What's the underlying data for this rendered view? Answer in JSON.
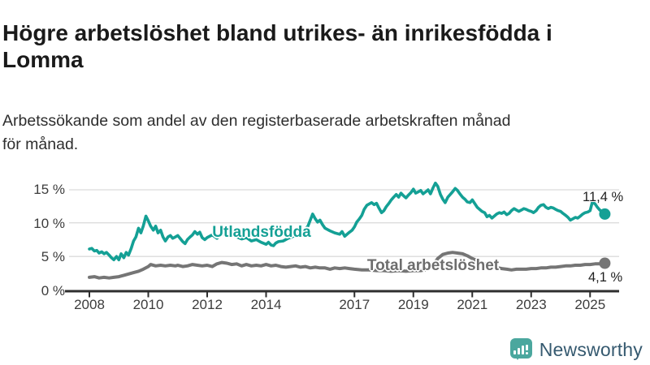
{
  "header": {
    "title_lines": [
      "Högre arbetslöshet bland utrikes- än inrikesfödda i",
      "Lomma"
    ],
    "subtitle_lines": [
      "Arbetssökande som andel av den registerbaserade arbetskraften månad",
      "för månad."
    ]
  },
  "annotations": {
    "utlandsfodda_end_value": "11,4 %",
    "total_end_value": "4,1 %"
  },
  "logo": {
    "text": "Newsworthy",
    "icon": "bar-chart-speech-bubble-icon",
    "icon_color": "#4ba79e",
    "text_color": "#35596f"
  },
  "colors": {
    "teal_series": "#14a095",
    "gray_series": "#757575",
    "gridline": "#dcdcdc",
    "axis": "#2e2e2e",
    "title_text": "#1a1a1a"
  },
  "chart_data": {
    "type": "line",
    "title": "Högre arbetslöshet bland utrikes- än inrikesfödda i Lomma",
    "subtitle": "Arbetssökande som andel av den registerbaserade arbetskraften månad för månad.",
    "xlabel": "",
    "ylabel": "",
    "ylim": [
      0,
      17
    ],
    "grid": true,
    "legend_position": "inline-labels",
    "y_ticks": [
      0,
      5,
      10,
      15
    ],
    "y_tick_labels": [
      "0 %",
      "5 %",
      "10 %",
      "15 %"
    ],
    "x_ticks": [
      2008,
      2010,
      2012,
      2014,
      2017,
      2019,
      2021,
      2023,
      2025
    ],
    "x_tick_labels": [
      "2008",
      "2010",
      "2012",
      "2014",
      "2017",
      "2019",
      "2021",
      "2023",
      "2025"
    ],
    "series": [
      {
        "name": "Utlandsfödda",
        "color": "#14a095",
        "stroke_width": 3.6,
        "end_label": "11,4 %",
        "points": [
          [
            2008.0,
            6.2
          ],
          [
            2008.08,
            6.3
          ],
          [
            2008.17,
            5.9
          ],
          [
            2008.25,
            6.0
          ],
          [
            2008.33,
            5.6
          ],
          [
            2008.42,
            5.8
          ],
          [
            2008.5,
            5.5
          ],
          [
            2008.58,
            5.7
          ],
          [
            2008.67,
            5.3
          ],
          [
            2008.75,
            4.9
          ],
          [
            2008.83,
            4.6
          ],
          [
            2008.92,
            5.1
          ],
          [
            2009.0,
            4.6
          ],
          [
            2009.08,
            5.5
          ],
          [
            2009.17,
            4.9
          ],
          [
            2009.25,
            5.7
          ],
          [
            2009.33,
            5.3
          ],
          [
            2009.42,
            6.3
          ],
          [
            2009.5,
            7.4
          ],
          [
            2009.58,
            8.0
          ],
          [
            2009.67,
            9.3
          ],
          [
            2009.75,
            8.6
          ],
          [
            2009.83,
            9.6
          ],
          [
            2009.92,
            11.1
          ],
          [
            2010.0,
            10.4
          ],
          [
            2010.08,
            9.6
          ],
          [
            2010.17,
            9.0
          ],
          [
            2010.25,
            9.6
          ],
          [
            2010.33,
            8.6
          ],
          [
            2010.42,
            9.0
          ],
          [
            2010.5,
            8.0
          ],
          [
            2010.58,
            7.4
          ],
          [
            2010.67,
            8.0
          ],
          [
            2010.75,
            8.2
          ],
          [
            2010.83,
            7.8
          ],
          [
            2010.92,
            8.0
          ],
          [
            2011.0,
            8.2
          ],
          [
            2011.08,
            7.8
          ],
          [
            2011.17,
            7.3
          ],
          [
            2011.25,
            7.0
          ],
          [
            2011.33,
            7.6
          ],
          [
            2011.42,
            8.0
          ],
          [
            2011.5,
            8.3
          ],
          [
            2011.58,
            8.8
          ],
          [
            2011.67,
            8.4
          ],
          [
            2011.75,
            8.7
          ],
          [
            2011.83,
            7.9
          ],
          [
            2011.92,
            7.6
          ],
          [
            2012.0,
            7.9
          ],
          [
            2012.17,
            8.3
          ],
          [
            2012.33,
            7.8
          ],
          [
            2012.5,
            8.5
          ],
          [
            2012.67,
            8.1
          ],
          [
            2012.83,
            8.4
          ],
          [
            2013.0,
            8.0
          ],
          [
            2013.17,
            7.7
          ],
          [
            2013.33,
            7.9
          ],
          [
            2013.5,
            7.4
          ],
          [
            2013.67,
            7.6
          ],
          [
            2013.83,
            7.2
          ],
          [
            2014.0,
            6.9
          ],
          [
            2014.08,
            7.2
          ],
          [
            2014.17,
            6.8
          ],
          [
            2014.25,
            6.7
          ],
          [
            2014.33,
            7.1
          ],
          [
            2014.42,
            7.3
          ],
          [
            2014.58,
            7.4
          ],
          [
            2014.75,
            7.8
          ],
          [
            2014.92,
            8.1
          ],
          [
            2015.08,
            8.5
          ],
          [
            2015.25,
            8.8
          ],
          [
            2015.42,
            9.6
          ],
          [
            2015.58,
            11.4
          ],
          [
            2015.67,
            10.7
          ],
          [
            2015.75,
            10.2
          ],
          [
            2015.83,
            10.5
          ],
          [
            2015.92,
            9.8
          ],
          [
            2016.0,
            9.3
          ],
          [
            2016.17,
            8.9
          ],
          [
            2016.33,
            8.6
          ],
          [
            2016.5,
            8.4
          ],
          [
            2016.58,
            8.8
          ],
          [
            2016.67,
            8.1
          ],
          [
            2016.83,
            8.7
          ],
          [
            2016.92,
            9.0
          ],
          [
            2017.0,
            9.5
          ],
          [
            2017.08,
            10.2
          ],
          [
            2017.17,
            10.7
          ],
          [
            2017.25,
            11.2
          ],
          [
            2017.33,
            12.1
          ],
          [
            2017.42,
            12.7
          ],
          [
            2017.5,
            12.9
          ],
          [
            2017.58,
            13.1
          ],
          [
            2017.67,
            12.8
          ],
          [
            2017.75,
            13.0
          ],
          [
            2017.83,
            12.3
          ],
          [
            2017.92,
            11.6
          ],
          [
            2018.0,
            11.9
          ],
          [
            2018.08,
            12.5
          ],
          [
            2018.17,
            13.0
          ],
          [
            2018.25,
            13.5
          ],
          [
            2018.33,
            13.9
          ],
          [
            2018.42,
            14.3
          ],
          [
            2018.5,
            13.9
          ],
          [
            2018.58,
            14.5
          ],
          [
            2018.67,
            14.1
          ],
          [
            2018.75,
            13.8
          ],
          [
            2018.83,
            14.2
          ],
          [
            2018.92,
            14.6
          ],
          [
            2019.0,
            15.1
          ],
          [
            2019.08,
            14.5
          ],
          [
            2019.17,
            14.7
          ],
          [
            2019.25,
            14.9
          ],
          [
            2019.33,
            14.4
          ],
          [
            2019.42,
            14.7
          ],
          [
            2019.5,
            15.0
          ],
          [
            2019.58,
            14.4
          ],
          [
            2019.67,
            15.3
          ],
          [
            2019.75,
            16.0
          ],
          [
            2019.83,
            15.5
          ],
          [
            2019.92,
            14.3
          ],
          [
            2020.0,
            13.6
          ],
          [
            2020.08,
            13.1
          ],
          [
            2020.17,
            13.9
          ],
          [
            2020.25,
            14.3
          ],
          [
            2020.33,
            14.7
          ],
          [
            2020.42,
            15.2
          ],
          [
            2020.5,
            14.9
          ],
          [
            2020.58,
            14.4
          ],
          [
            2020.67,
            13.9
          ],
          [
            2020.75,
            13.6
          ],
          [
            2020.83,
            13.2
          ],
          [
            2020.92,
            13.1
          ],
          [
            2021.0,
            13.5
          ],
          [
            2021.08,
            13.0
          ],
          [
            2021.17,
            12.4
          ],
          [
            2021.25,
            12.1
          ],
          [
            2021.33,
            11.8
          ],
          [
            2021.42,
            11.6
          ],
          [
            2021.5,
            11.0
          ],
          [
            2021.58,
            11.2
          ],
          [
            2021.67,
            10.8
          ],
          [
            2021.75,
            11.1
          ],
          [
            2021.83,
            11.4
          ],
          [
            2021.92,
            11.6
          ],
          [
            2022.0,
            11.5
          ],
          [
            2022.08,
            11.7
          ],
          [
            2022.17,
            11.3
          ],
          [
            2022.25,
            11.5
          ],
          [
            2022.33,
            11.9
          ],
          [
            2022.42,
            12.2
          ],
          [
            2022.5,
            12.0
          ],
          [
            2022.58,
            11.8
          ],
          [
            2022.67,
            12.0
          ],
          [
            2022.75,
            12.2
          ],
          [
            2022.83,
            12.1
          ],
          [
            2022.92,
            11.9
          ],
          [
            2023.0,
            11.8
          ],
          [
            2023.08,
            11.6
          ],
          [
            2023.17,
            11.9
          ],
          [
            2023.25,
            12.4
          ],
          [
            2023.33,
            12.7
          ],
          [
            2023.42,
            12.8
          ],
          [
            2023.5,
            12.4
          ],
          [
            2023.58,
            12.2
          ],
          [
            2023.67,
            12.4
          ],
          [
            2023.75,
            12.3
          ],
          [
            2023.83,
            12.1
          ],
          [
            2023.92,
            11.9
          ],
          [
            2024.0,
            11.8
          ],
          [
            2024.08,
            11.5
          ],
          [
            2024.17,
            11.2
          ],
          [
            2024.25,
            10.9
          ],
          [
            2024.33,
            10.5
          ],
          [
            2024.42,
            10.7
          ],
          [
            2024.5,
            10.9
          ],
          [
            2024.58,
            10.8
          ],
          [
            2024.67,
            11.1
          ],
          [
            2024.75,
            11.4
          ],
          [
            2024.83,
            11.6
          ],
          [
            2024.92,
            11.7
          ],
          [
            2025.0,
            11.9
          ],
          [
            2025.08,
            13.2
          ],
          [
            2025.17,
            12.9
          ],
          [
            2025.25,
            12.4
          ],
          [
            2025.33,
            12.0
          ],
          [
            2025.42,
            11.7
          ],
          [
            2025.5,
            11.4
          ]
        ]
      },
      {
        "name": "Total arbetslöshet",
        "color": "#757575",
        "stroke_width": 4,
        "end_label": "4,1 %",
        "points": [
          [
            2008.0,
            2.0
          ],
          [
            2008.17,
            2.1
          ],
          [
            2008.33,
            1.9
          ],
          [
            2008.5,
            2.0
          ],
          [
            2008.67,
            1.9
          ],
          [
            2008.83,
            2.0
          ],
          [
            2009.0,
            2.1
          ],
          [
            2009.17,
            2.3
          ],
          [
            2009.33,
            2.5
          ],
          [
            2009.5,
            2.7
          ],
          [
            2009.67,
            2.9
          ],
          [
            2009.83,
            3.2
          ],
          [
            2010.0,
            3.6
          ],
          [
            2010.08,
            3.9
          ],
          [
            2010.25,
            3.7
          ],
          [
            2010.42,
            3.8
          ],
          [
            2010.58,
            3.7
          ],
          [
            2010.75,
            3.8
          ],
          [
            2010.92,
            3.7
          ],
          [
            2011.0,
            3.8
          ],
          [
            2011.17,
            3.6
          ],
          [
            2011.33,
            3.7
          ],
          [
            2011.5,
            3.9
          ],
          [
            2011.67,
            3.8
          ],
          [
            2011.83,
            3.7
          ],
          [
            2012.0,
            3.8
          ],
          [
            2012.17,
            3.6
          ],
          [
            2012.33,
            4.0
          ],
          [
            2012.5,
            4.2
          ],
          [
            2012.67,
            4.1
          ],
          [
            2012.83,
            3.9
          ],
          [
            2013.0,
            4.0
          ],
          [
            2013.17,
            3.7
          ],
          [
            2013.33,
            3.9
          ],
          [
            2013.5,
            3.7
          ],
          [
            2013.67,
            3.8
          ],
          [
            2013.83,
            3.7
          ],
          [
            2014.0,
            3.9
          ],
          [
            2014.17,
            3.7
          ],
          [
            2014.33,
            3.8
          ],
          [
            2014.5,
            3.6
          ],
          [
            2014.67,
            3.5
          ],
          [
            2014.83,
            3.6
          ],
          [
            2015.0,
            3.7
          ],
          [
            2015.17,
            3.5
          ],
          [
            2015.33,
            3.6
          ],
          [
            2015.5,
            3.4
          ],
          [
            2015.67,
            3.5
          ],
          [
            2015.83,
            3.4
          ],
          [
            2016.0,
            3.4
          ],
          [
            2016.17,
            3.2
          ],
          [
            2016.33,
            3.4
          ],
          [
            2016.5,
            3.3
          ],
          [
            2016.67,
            3.4
          ],
          [
            2016.83,
            3.3
          ],
          [
            2017.0,
            3.2
          ],
          [
            2017.25,
            3.1
          ],
          [
            2017.5,
            3.1
          ],
          [
            2017.75,
            3.0
          ],
          [
            2018.0,
            3.0
          ],
          [
            2018.25,
            2.9
          ],
          [
            2018.5,
            3.0
          ],
          [
            2018.75,
            2.9
          ],
          [
            2019.0,
            3.0
          ],
          [
            2019.25,
            3.0
          ],
          [
            2019.5,
            3.2
          ],
          [
            2019.67,
            3.8
          ],
          [
            2019.83,
            4.8
          ],
          [
            2020.0,
            5.4
          ],
          [
            2020.17,
            5.6
          ],
          [
            2020.33,
            5.7
          ],
          [
            2020.5,
            5.6
          ],
          [
            2020.67,
            5.5
          ],
          [
            2020.83,
            5.2
          ],
          [
            2021.0,
            4.8
          ],
          [
            2021.25,
            4.3
          ],
          [
            2021.5,
            3.9
          ],
          [
            2021.75,
            3.5
          ],
          [
            2022.0,
            3.3
          ],
          [
            2022.17,
            3.2
          ],
          [
            2022.33,
            3.1
          ],
          [
            2022.5,
            3.2
          ],
          [
            2022.67,
            3.2
          ],
          [
            2022.83,
            3.2
          ],
          [
            2023.0,
            3.3
          ],
          [
            2023.17,
            3.3
          ],
          [
            2023.33,
            3.4
          ],
          [
            2023.5,
            3.4
          ],
          [
            2023.67,
            3.5
          ],
          [
            2023.83,
            3.5
          ],
          [
            2024.0,
            3.6
          ],
          [
            2024.17,
            3.7
          ],
          [
            2024.33,
            3.7
          ],
          [
            2024.5,
            3.8
          ],
          [
            2024.67,
            3.8
          ],
          [
            2024.83,
            3.9
          ],
          [
            2025.0,
            3.9
          ],
          [
            2025.17,
            4.0
          ],
          [
            2025.33,
            4.0
          ],
          [
            2025.5,
            4.1
          ]
        ]
      }
    ]
  }
}
